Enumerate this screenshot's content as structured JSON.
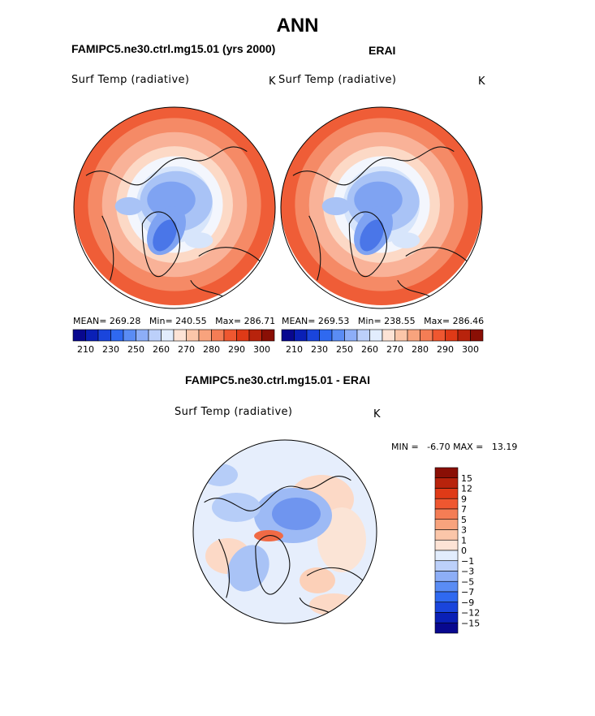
{
  "page": {
    "title": "ANN"
  },
  "colors": {
    "abs_scale": [
      "#08088f",
      "#0a20b6",
      "#1a45dc",
      "#2f69f0",
      "#5a8cf4",
      "#8daef7",
      "#bcd0fa",
      "#e2edfd",
      "#fde3d5",
      "#fbc6a9",
      "#f8a37d",
      "#f47d55",
      "#ef5730",
      "#df3a17",
      "#b8230c",
      "#8a0f05"
    ],
    "diff_scale": [
      "#08088f",
      "#0a20b6",
      "#1a45dc",
      "#2f69f0",
      "#5a8cf4",
      "#8daef7",
      "#bcd0fa",
      "#e2edfd",
      "#fde3d5",
      "#fbc6a9",
      "#f8a37d",
      "#f47d55",
      "#ef5730",
      "#df3a17",
      "#b8230c",
      "#8a0f05"
    ]
  },
  "chart_data": [
    {
      "type": "heatmap",
      "panel": "model",
      "title": "FAMIPC5.ne30.ctrl.mg15.01 (yrs 2000)",
      "variable": "Surf Temp (radiative)",
      "units": "K",
      "stats": {
        "mean_label": "MEAN=",
        "mean": "269.28",
        "min_label": "Min=",
        "min": "240.55",
        "max_label": "Max=",
        "max": "286.71"
      },
      "colorbar_ticks": [
        "210",
        "230",
        "250",
        "260",
        "270",
        "280",
        "290",
        "300"
      ]
    },
    {
      "type": "heatmap",
      "panel": "obs",
      "title": "ERAI",
      "variable": "Surf Temp (radiative)",
      "units": "K",
      "stats": {
        "mean_label": "MEAN=",
        "mean": "269.53",
        "min_label": "Min=",
        "min": "238.55",
        "max_label": "Max=",
        "max": "286.46"
      },
      "colorbar_ticks": [
        "210",
        "230",
        "250",
        "260",
        "270",
        "280",
        "290",
        "300"
      ]
    },
    {
      "type": "heatmap",
      "panel": "difference",
      "title": "FAMIPC5.ne30.ctrl.mg15.01 - ERAI",
      "variable": "Surf Temp (radiative)",
      "units": "K",
      "stats_text": "MIN =   -6.70 MAX =   13.19",
      "colorbar_ticks": [
        "15",
        "12",
        "9",
        "7",
        "5",
        "3",
        "1",
        "0",
        "−1",
        "−3",
        "−5",
        "−7",
        "−9",
        "−12",
        "−15"
      ]
    }
  ]
}
